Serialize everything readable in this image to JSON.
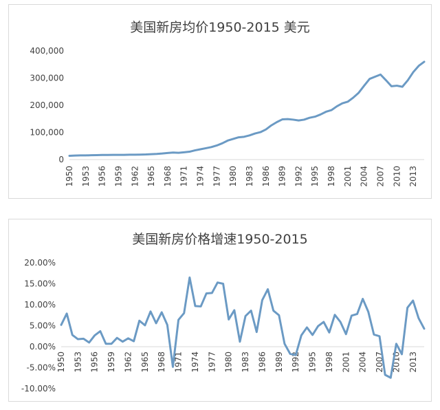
{
  "chart_data": [
    {
      "type": "line",
      "title": "美国新房均价1950-2015 美元",
      "xlabel": "",
      "ylabel": "",
      "ylim": [
        0,
        400000
      ],
      "yticks": [
        "0",
        "100,000",
        "200,000",
        "300,000",
        "400,000"
      ],
      "x_tick_labels": [
        "1950",
        "1953",
        "1956",
        "1959",
        "1962",
        "1965",
        "1968",
        "1971",
        "1974",
        "1977",
        "1980",
        "1983",
        "1986",
        "1989",
        "1992",
        "1995",
        "1998",
        "2001",
        "2004",
        "2007",
        "2010",
        "2013"
      ],
      "x": [
        1950,
        1951,
        1952,
        1953,
        1954,
        1955,
        1956,
        1957,
        1958,
        1959,
        1960,
        1961,
        1962,
        1963,
        1964,
        1965,
        1966,
        1967,
        1968,
        1969,
        1970,
        1971,
        1972,
        1973,
        1974,
        1975,
        1976,
        1977,
        1978,
        1979,
        1980,
        1981,
        1982,
        1983,
        1984,
        1985,
        1986,
        1987,
        1988,
        1989,
        1990,
        1991,
        1992,
        1993,
        1994,
        1995,
        1996,
        1997,
        1998,
        1999,
        2000,
        2001,
        2002,
        2003,
        2004,
        2005,
        2006,
        2007,
        2008,
        2009,
        2010,
        2011,
        2012,
        2013,
        2014,
        2015
      ],
      "values": [
        14000,
        15000,
        15500,
        15500,
        16000,
        16500,
        17000,
        17000,
        17500,
        17500,
        17500,
        18000,
        18000,
        18500,
        19000,
        20000,
        21000,
        22500,
        24500,
        26000,
        25000,
        27000,
        29000,
        34000,
        38000,
        42000,
        46000,
        52000,
        60000,
        70000,
        76000,
        82000,
        84000,
        89000,
        96000,
        101000,
        111000,
        126000,
        138000,
        148000,
        149000,
        147000,
        144000,
        147000,
        154000,
        158000,
        166000,
        176000,
        182000,
        196000,
        207000,
        213000,
        228000,
        246000,
        272000,
        297000,
        305000,
        313000,
        292000,
        270000,
        272000,
        268000,
        292000,
        322000,
        345000,
        360000
      ],
      "grid": false,
      "legend": "none",
      "color": "#6b9ac4"
    },
    {
      "type": "line",
      "title": "美国新房价格增速1950-2015",
      "xlabel": "",
      "ylabel": "",
      "ylim": [
        -0.1,
        0.2
      ],
      "yticks": [
        "-10.00%",
        "-5.00%",
        "0.00%",
        "5.00%",
        "10.00%",
        "15.00%",
        "20.00%"
      ],
      "x_tick_labels": [
        "1950",
        "1953",
        "1956",
        "1959",
        "1962",
        "1965",
        "1968",
        "1971",
        "1974",
        "1977",
        "1980",
        "1983",
        "1986",
        "1989",
        "1992",
        "1995",
        "1998",
        "2001",
        "2004",
        "2007",
        "2010",
        "2013"
      ],
      "x": [
        1950,
        1951,
        1952,
        1953,
        1954,
        1955,
        1956,
        1957,
        1958,
        1959,
        1960,
        1961,
        1962,
        1963,
        1964,
        1965,
        1966,
        1967,
        1968,
        1969,
        1970,
        1971,
        1972,
        1973,
        1974,
        1975,
        1976,
        1977,
        1978,
        1979,
        1980,
        1981,
        1982,
        1983,
        1984,
        1985,
        1986,
        1987,
        1988,
        1989,
        1990,
        1991,
        1992,
        1993,
        1994,
        1995,
        1996,
        1997,
        1998,
        1999,
        2000,
        2001,
        2002,
        2003,
        2004,
        2005,
        2006,
        2007,
        2008,
        2009,
        2010,
        2011,
        2012,
        2013,
        2014,
        2015
      ],
      "values": [
        0.052,
        0.079,
        0.028,
        0.018,
        0.019,
        0.01,
        0.027,
        0.037,
        0.007,
        0.007,
        0.021,
        0.012,
        0.02,
        0.013,
        0.062,
        0.051,
        0.084,
        0.056,
        0.082,
        0.052,
        -0.048,
        0.064,
        0.08,
        0.165,
        0.097,
        0.096,
        0.127,
        0.128,
        0.153,
        0.15,
        0.065,
        0.087,
        0.012,
        0.073,
        0.086,
        0.035,
        0.111,
        0.137,
        0.086,
        0.075,
        0.007,
        -0.017,
        -0.02,
        0.027,
        0.046,
        0.028,
        0.049,
        0.059,
        0.034,
        0.076,
        0.059,
        0.03,
        0.074,
        0.078,
        0.114,
        0.083,
        0.029,
        0.025,
        -0.067,
        -0.074,
        0.007,
        -0.018,
        0.093,
        0.11,
        0.068,
        0.043
      ],
      "grid": false,
      "legend": "none",
      "color": "#6b9ac4"
    }
  ]
}
